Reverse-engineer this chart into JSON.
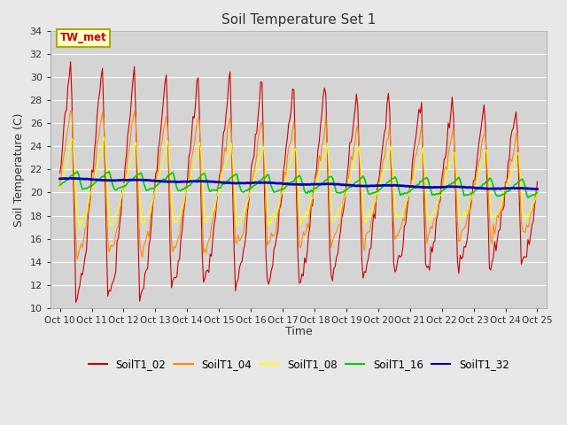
{
  "title": "Soil Temperature Set 1",
  "xlabel": "Time",
  "ylabel": "Soil Temperature (C)",
  "ylim": [
    10,
    34
  ],
  "annotation": "TW_met",
  "series_colors": {
    "SoilT1_02": "#cc0000",
    "SoilT1_04": "#ff8800",
    "SoilT1_08": "#ffff00",
    "SoilT1_16": "#00cc00",
    "SoilT1_32": "#0000bb"
  },
  "bg_color": "#e8e8e8",
  "plot_bg_color": "#d4d4d4",
  "x_tick_labels": [
    "Oct 10",
    "Oct 11",
    "Oct 12",
    "Oct 13",
    "Oct 14",
    "Oct 15",
    "Oct 16",
    "Oct 17",
    "Oct 18",
    "Oct 19",
    "Oct 20",
    "Oct 21",
    "Oct 22",
    "Oct 23",
    "Oct 24",
    "Oct 25"
  ],
  "x_tick_labels_short": [
    "Oct\n10",
    "Oct\n11",
    "Oct\n12",
    "Oct\n13",
    "Oct\n14",
    "Oct\n15",
    "Oct\n16",
    "Oct\n17",
    "Oct\n18",
    "Oct\n19",
    "Oct\n20",
    "Oct\n21",
    "Oct\n22",
    "Oct\n23",
    "Oct\n24",
    "Oct\n25"
  ],
  "figsize": [
    6.4,
    4.8
  ],
  "dpi": 100
}
